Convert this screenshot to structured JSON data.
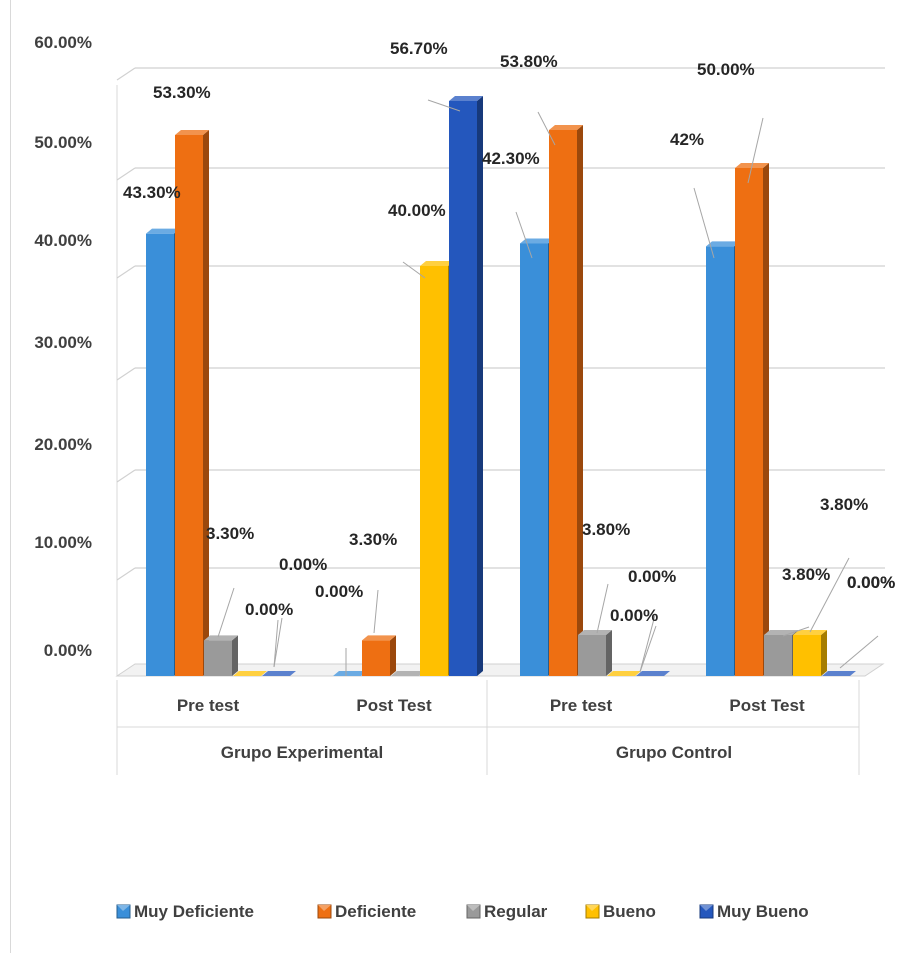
{
  "chart_data": {
    "type": "bar",
    "style": "3d-clustered-column",
    "groups": [
      {
        "label": "Grupo Experimental",
        "categories": [
          "Pre test",
          "Post Test"
        ]
      },
      {
        "label": "Grupo Control",
        "categories": [
          "Pre test",
          "Post Test"
        ]
      }
    ],
    "categories": [
      "Pre test",
      "Post Test",
      "Pre test",
      "Post Test"
    ],
    "series": [
      {
        "name": "Muy Deficiente",
        "color": "#3a8fd9",
        "values": [
          43.3,
          0.0,
          42.3,
          42.0
        ],
        "labels": [
          "43.30%",
          "",
          "42.30%",
          "42%"
        ]
      },
      {
        "name": "Deficiente",
        "color": "#ee6f12",
        "values": [
          53.3,
          3.3,
          53.8,
          50.0
        ],
        "labels": [
          "53.30%",
          "3.30%",
          "53.80%",
          "50.00%"
        ]
      },
      {
        "name": "Regular",
        "color": "#9a9a9a",
        "values": [
          3.3,
          0.0,
          3.8,
          3.8
        ],
        "labels": [
          "3.30%",
          "0.00%",
          "3.80%",
          "3.80%"
        ]
      },
      {
        "name": "Bueno",
        "color": "#ffc000",
        "values": [
          0.0,
          40.0,
          0.0,
          3.8
        ],
        "labels": [
          "0.00%",
          "40.00%",
          "0.00%",
          "3.80%"
        ]
      },
      {
        "name": "Muy Bueno",
        "color": "#2457bd",
        "values": [
          0.0,
          56.7,
          0.0,
          0.0
        ],
        "labels": [
          "0.00%",
          "56.70%",
          "0.00%",
          "0.00%"
        ]
      }
    ],
    "extra_labels": [
      "0.00%"
    ],
    "ylim": [
      0,
      60
    ],
    "yticks": [
      "0.00%",
      "10.00%",
      "20.00%",
      "30.00%",
      "40.00%",
      "50.00%",
      "60.00%"
    ],
    "grid": true,
    "legend": "bottom"
  }
}
